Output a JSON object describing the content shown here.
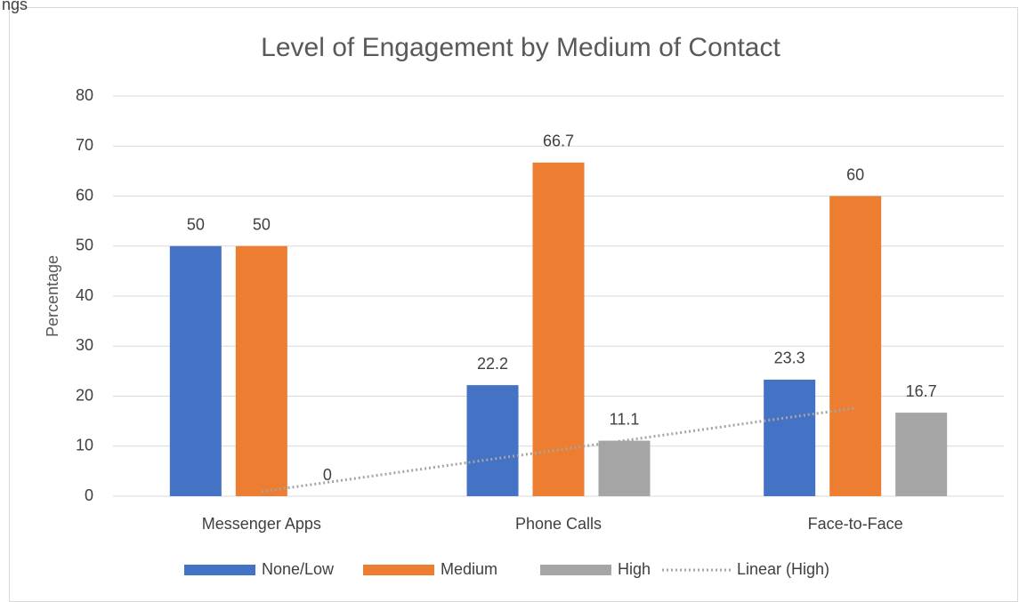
{
  "caption": "ngs",
  "chart_data": {
    "type": "bar",
    "title": "Level of Engagement by Medium of Contact",
    "y_label": "Percentage",
    "categories": [
      "Messenger Apps",
      "Phone Calls",
      "Face-to-Face"
    ],
    "series": [
      {
        "name": "None/Low",
        "color": "#4472c4",
        "values": [
          50,
          22.2,
          23.3
        ]
      },
      {
        "name": "Medium",
        "color": "#ed7d31",
        "values": [
          50,
          66.7,
          60
        ]
      },
      {
        "name": "High",
        "color": "#a5a5a5",
        "values": [
          0,
          11.1,
          16.7
        ]
      }
    ],
    "trendline": {
      "name": "Linear (High)",
      "series": "High",
      "kind": "linear",
      "color": "#a5a5a5",
      "style": "dotted"
    },
    "ylim": [
      0,
      80
    ],
    "yticks": [
      0,
      10,
      20,
      30,
      40,
      50,
      60,
      70,
      80
    ],
    "grid": true,
    "data_labels": true,
    "legend": "bottom"
  }
}
